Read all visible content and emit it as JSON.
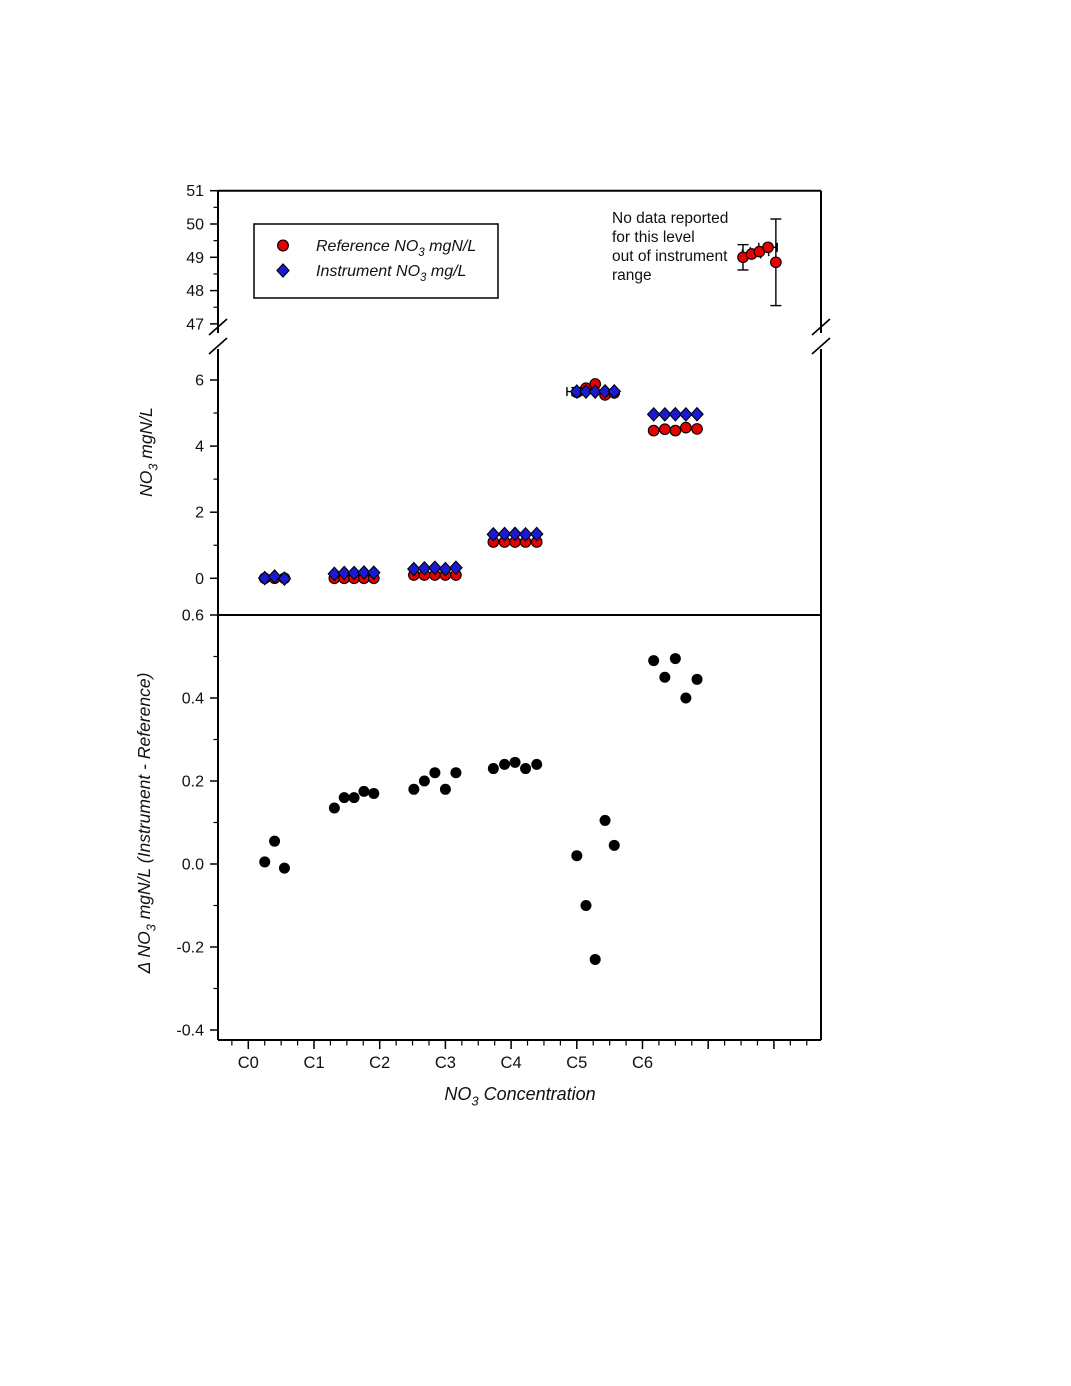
{
  "figure": {
    "background": "#ffffff",
    "axis_color": "#000000",
    "reference_color": "#e60000",
    "instrument_color": "#1a1ad2",
    "delta_color": "#000000"
  },
  "chart_data": [
    {
      "id": "top-panel",
      "type": "scatter",
      "broken_y_axis": true,
      "ylabel": {
        "pre": "NO",
        "sub": "3",
        "post": " mgN/L"
      },
      "y_upper": {
        "range": [
          47,
          51
        ],
        "ticks": [
          "51",
          "50",
          "49",
          "48",
          "47"
        ],
        "minor_ticks": [
          50.5,
          49.5,
          48.5,
          47.5
        ]
      },
      "y_lower": {
        "range": [
          0,
          6
        ],
        "ticks": [
          "6",
          "4",
          "2",
          "0"
        ],
        "minor_ticks": [
          5,
          3,
          1
        ]
      },
      "legend": {
        "position": "upper-left",
        "entries": [
          {
            "marker": "circle",
            "color": "#e60000",
            "label_pre": "Reference NO",
            "label_sub": "3",
            "label_post": " mgN/L"
          },
          {
            "marker": "diamond",
            "color": "#1a1ad2",
            "label_pre": "Instrument NO",
            "label_sub": "3",
            "label_post": " mg/L"
          }
        ]
      },
      "annotation": {
        "lines": [
          "No data reported",
          "for this level",
          "out of instrument",
          "range"
        ]
      },
      "series": [
        {
          "name": "Reference NO3 mgN/L",
          "marker": "circle",
          "color": "#e60000",
          "points": [
            {
              "x": 0.25,
              "y": 0.0
            },
            {
              "x": 0.4,
              "y": 0.0
            },
            {
              "x": 0.55,
              "y": 0.0
            },
            {
              "x": 1.31,
              "y": 0.0
            },
            {
              "x": 1.46,
              "y": 0.0
            },
            {
              "x": 1.61,
              "y": 0.0
            },
            {
              "x": 1.76,
              "y": 0.0
            },
            {
              "x": 1.91,
              "y": 0.0
            },
            {
              "x": 2.52,
              "y": 0.1
            },
            {
              "x": 2.68,
              "y": 0.1
            },
            {
              "x": 2.84,
              "y": 0.1
            },
            {
              "x": 3.0,
              "y": 0.1
            },
            {
              "x": 3.16,
              "y": 0.1
            },
            {
              "x": 3.73,
              "y": 1.1
            },
            {
              "x": 3.9,
              "y": 1.1
            },
            {
              "x": 4.06,
              "y": 1.1
            },
            {
              "x": 4.22,
              "y": 1.1
            },
            {
              "x": 4.39,
              "y": 1.1
            },
            {
              "x": 5.0,
              "y": 5.63
            },
            {
              "x": 5.14,
              "y": 5.75
            },
            {
              "x": 5.28,
              "y": 5.88
            },
            {
              "x": 5.43,
              "y": 5.55
            },
            {
              "x": 5.57,
              "y": 5.61
            },
            {
              "x": 6.17,
              "y": 4.47
            },
            {
              "x": 6.34,
              "y": 4.51
            },
            {
              "x": 6.5,
              "y": 4.47
            },
            {
              "x": 6.66,
              "y": 4.56
            },
            {
              "x": 6.83,
              "y": 4.52
            }
          ],
          "upper_points": [
            {
              "x": 7.53,
              "y": 49.0,
              "yerr": 0.38
            },
            {
              "x": 7.66,
              "y": 49.1,
              "xerr": 0.14
            },
            {
              "x": 7.78,
              "y": 49.17,
              "xerr": 0.14
            },
            {
              "x": 7.91,
              "y": 49.3,
              "xerr": 0.14
            },
            {
              "x": 8.03,
              "y": 48.85,
              "yerr": 1.3
            }
          ]
        },
        {
          "name": "Instrument NO3 mg/L",
          "marker": "diamond",
          "color": "#1a1ad2",
          "points": [
            {
              "x": 0.25,
              "y": 0.005
            },
            {
              "x": 0.4,
              "y": 0.055
            },
            {
              "x": 0.55,
              "y": -0.01
            },
            {
              "x": 1.31,
              "y": 0.135
            },
            {
              "x": 1.46,
              "y": 0.16
            },
            {
              "x": 1.61,
              "y": 0.16
            },
            {
              "x": 1.76,
              "y": 0.175
            },
            {
              "x": 1.91,
              "y": 0.17
            },
            {
              "x": 2.52,
              "y": 0.28
            },
            {
              "x": 2.68,
              "y": 0.3
            },
            {
              "x": 2.84,
              "y": 0.32
            },
            {
              "x": 3.0,
              "y": 0.28
            },
            {
              "x": 3.16,
              "y": 0.32
            },
            {
              "x": 3.73,
              "y": 1.33
            },
            {
              "x": 3.9,
              "y": 1.34
            },
            {
              "x": 4.06,
              "y": 1.345
            },
            {
              "x": 4.22,
              "y": 1.33
            },
            {
              "x": 4.39,
              "y": 1.34
            },
            {
              "x": 5.0,
              "y": 5.65,
              "xerr": 0.15,
              "yerr": 0.12
            },
            {
              "x": 5.14,
              "y": 5.65
            },
            {
              "x": 5.28,
              "y": 5.65
            },
            {
              "x": 5.43,
              "y": 5.655
            },
            {
              "x": 5.57,
              "y": 5.655
            },
            {
              "x": 6.17,
              "y": 4.96
            },
            {
              "x": 6.34,
              "y": 4.96
            },
            {
              "x": 6.5,
              "y": 4.965
            },
            {
              "x": 6.66,
              "y": 4.96
            },
            {
              "x": 6.83,
              "y": 4.965
            }
          ]
        }
      ]
    },
    {
      "id": "bottom-panel",
      "type": "scatter",
      "ylabel": {
        "pre": "Δ NO",
        "sub": "3",
        "post": " mgN/L (Instrument - Reference)"
      },
      "xlabel": {
        "pre": "NO",
        "sub": "3",
        "post": " Concentration"
      },
      "y_axis": {
        "range": [
          -0.4,
          0.6
        ],
        "ticks": [
          "0.6",
          "0.4",
          "0.2",
          "0.0",
          "-0.2",
          "-0.4"
        ],
        "minor_ticks": [
          0.5,
          0.3,
          0.1,
          -0.1,
          -0.3
        ]
      },
      "x_axis": {
        "categories": [
          "C0",
          "C1",
          "C2",
          "C3",
          "C4",
          "C5",
          "C6"
        ],
        "minor_step": 0.25
      },
      "series": [
        {
          "name": "Delta NO3 (Instrument - Reference)",
          "marker": "circle",
          "color": "#000000",
          "points": [
            {
              "x": 0.25,
              "y": 0.005
            },
            {
              "x": 0.4,
              "y": 0.055
            },
            {
              "x": 0.55,
              "y": -0.01
            },
            {
              "x": 1.31,
              "y": 0.135
            },
            {
              "x": 1.46,
              "y": 0.16
            },
            {
              "x": 1.61,
              "y": 0.16
            },
            {
              "x": 1.76,
              "y": 0.175
            },
            {
              "x": 1.91,
              "y": 0.17
            },
            {
              "x": 2.52,
              "y": 0.18
            },
            {
              "x": 2.68,
              "y": 0.2
            },
            {
              "x": 2.84,
              "y": 0.22
            },
            {
              "x": 3.0,
              "y": 0.18
            },
            {
              "x": 3.16,
              "y": 0.22
            },
            {
              "x": 3.73,
              "y": 0.23
            },
            {
              "x": 3.9,
              "y": 0.24
            },
            {
              "x": 4.06,
              "y": 0.245
            },
            {
              "x": 4.22,
              "y": 0.23
            },
            {
              "x": 4.39,
              "y": 0.24
            },
            {
              "x": 5.0,
              "y": 0.02
            },
            {
              "x": 5.14,
              "y": -0.1
            },
            {
              "x": 5.28,
              "y": -0.23
            },
            {
              "x": 5.43,
              "y": 0.105
            },
            {
              "x": 5.57,
              "y": 0.045
            },
            {
              "x": 6.17,
              "y": 0.49
            },
            {
              "x": 6.34,
              "y": 0.45
            },
            {
              "x": 6.5,
              "y": 0.495
            },
            {
              "x": 6.66,
              "y": 0.4
            },
            {
              "x": 6.83,
              "y": 0.445
            }
          ]
        }
      ]
    }
  ]
}
